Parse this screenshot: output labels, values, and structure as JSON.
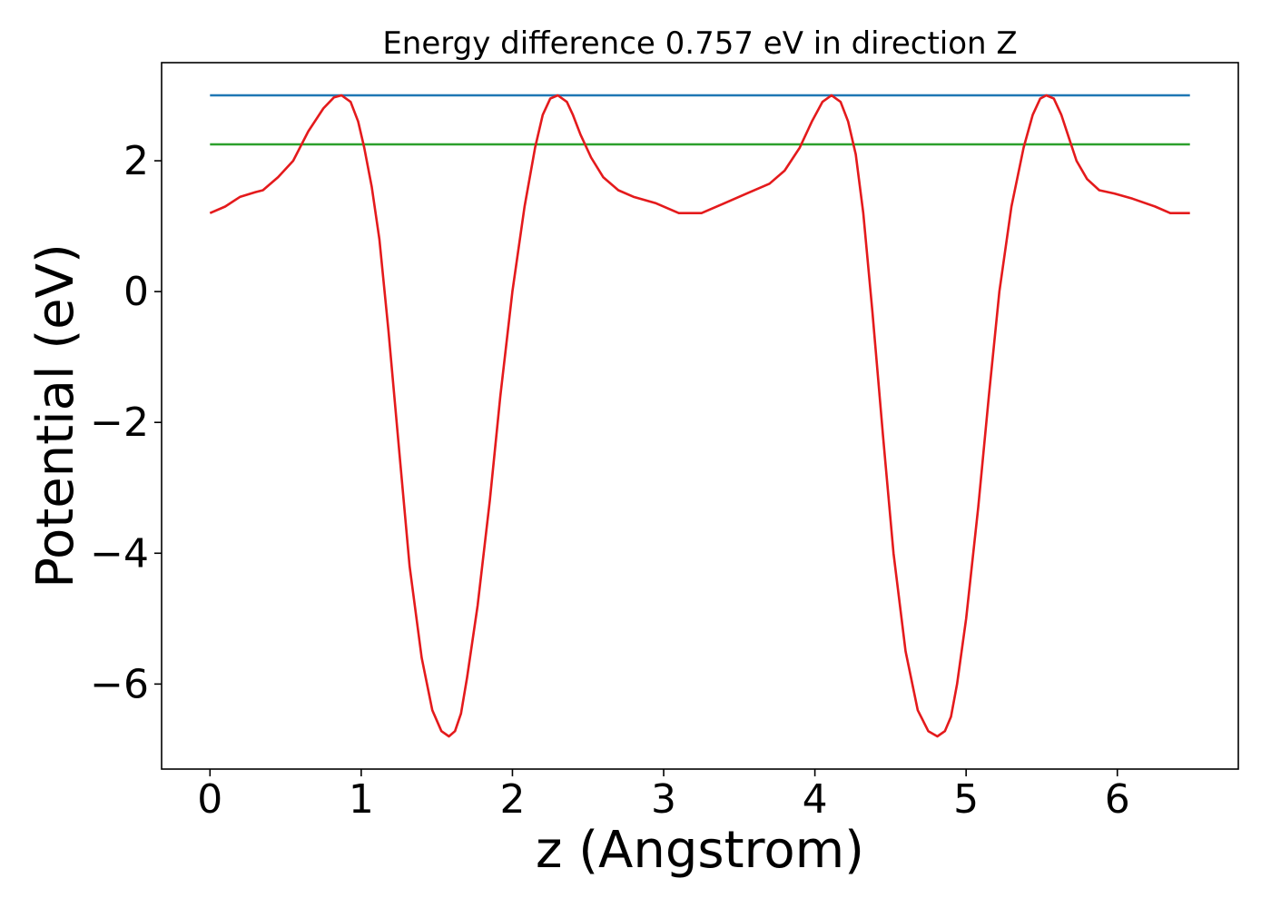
{
  "chart_data": {
    "type": "line",
    "title": "Energy difference 0.757 eV in direction Z",
    "xlabel": "z (Angstrom)",
    "ylabel": "Potential (eV)",
    "xlim": [
      -0.32,
      6.8
    ],
    "ylim": [
      -7.3,
      3.5
    ],
    "xticks": [
      0,
      1,
      2,
      3,
      4,
      5,
      6
    ],
    "xtick_labels": [
      "0",
      "1",
      "2",
      "3",
      "4",
      "5",
      "6"
    ],
    "yticks": [
      -6,
      -4,
      -2,
      0,
      2
    ],
    "ytick_labels": [
      "−6",
      "−4",
      "−2",
      "0",
      "2"
    ],
    "grid": false,
    "legend": "none",
    "series": [
      {
        "color": "#1f77b4",
        "x": [
          0,
          6.48
        ],
        "y": [
          3.0,
          3.0
        ]
      },
      {
        "color": "#2ca02c",
        "x": [
          0,
          6.48
        ],
        "y": [
          2.25,
          2.25
        ]
      },
      {
        "color": "#e41a1c",
        "x": [
          0,
          0.1,
          0.2,
          0.3,
          0.35,
          0.45,
          0.55,
          0.65,
          0.75,
          0.82,
          0.87,
          0.93,
          0.98,
          1.02,
          1.07,
          1.12,
          1.18,
          1.25,
          1.32,
          1.4,
          1.47,
          1.53,
          1.58,
          1.62,
          1.66,
          1.7,
          1.77,
          1.85,
          1.92,
          2.0,
          2.08,
          2.15,
          2.2,
          2.25,
          2.3,
          2.36,
          2.4,
          2.45,
          2.52,
          2.6,
          2.7,
          2.8,
          2.95,
          3.1,
          3.25,
          3.4,
          3.55,
          3.7,
          3.8,
          3.9,
          3.98,
          4.05,
          4.11,
          4.17,
          4.22,
          4.27,
          4.32,
          4.38,
          4.45,
          4.52,
          4.6,
          4.68,
          4.75,
          4.81,
          4.86,
          4.9,
          4.94,
          5.0,
          5.08,
          5.15,
          5.22,
          5.3,
          5.38,
          5.44,
          5.49,
          5.53,
          5.58,
          5.63,
          5.68,
          5.73,
          5.8,
          5.88,
          5.98,
          6.1,
          6.25,
          6.35,
          6.48
        ],
        "y": [
          1.2,
          1.3,
          1.45,
          1.52,
          1.55,
          1.75,
          2.0,
          2.45,
          2.8,
          2.97,
          3.0,
          2.9,
          2.6,
          2.2,
          1.6,
          0.8,
          -0.6,
          -2.4,
          -4.2,
          -5.6,
          -6.4,
          -6.72,
          -6.8,
          -6.72,
          -6.45,
          -5.9,
          -4.8,
          -3.2,
          -1.6,
          0.0,
          1.3,
          2.2,
          2.7,
          2.95,
          3.0,
          2.9,
          2.7,
          2.4,
          2.05,
          1.75,
          1.55,
          1.45,
          1.35,
          1.2,
          1.2,
          1.35,
          1.5,
          1.65,
          1.85,
          2.2,
          2.6,
          2.9,
          3.0,
          2.9,
          2.6,
          2.1,
          1.2,
          -0.3,
          -2.2,
          -4.0,
          -5.5,
          -6.4,
          -6.72,
          -6.8,
          -6.72,
          -6.5,
          -6.0,
          -5.0,
          -3.3,
          -1.6,
          0.0,
          1.3,
          2.2,
          2.7,
          2.95,
          3.0,
          2.95,
          2.7,
          2.35,
          2.0,
          1.72,
          1.55,
          1.5,
          1.42,
          1.3,
          1.2,
          1.2
        ]
      }
    ]
  }
}
